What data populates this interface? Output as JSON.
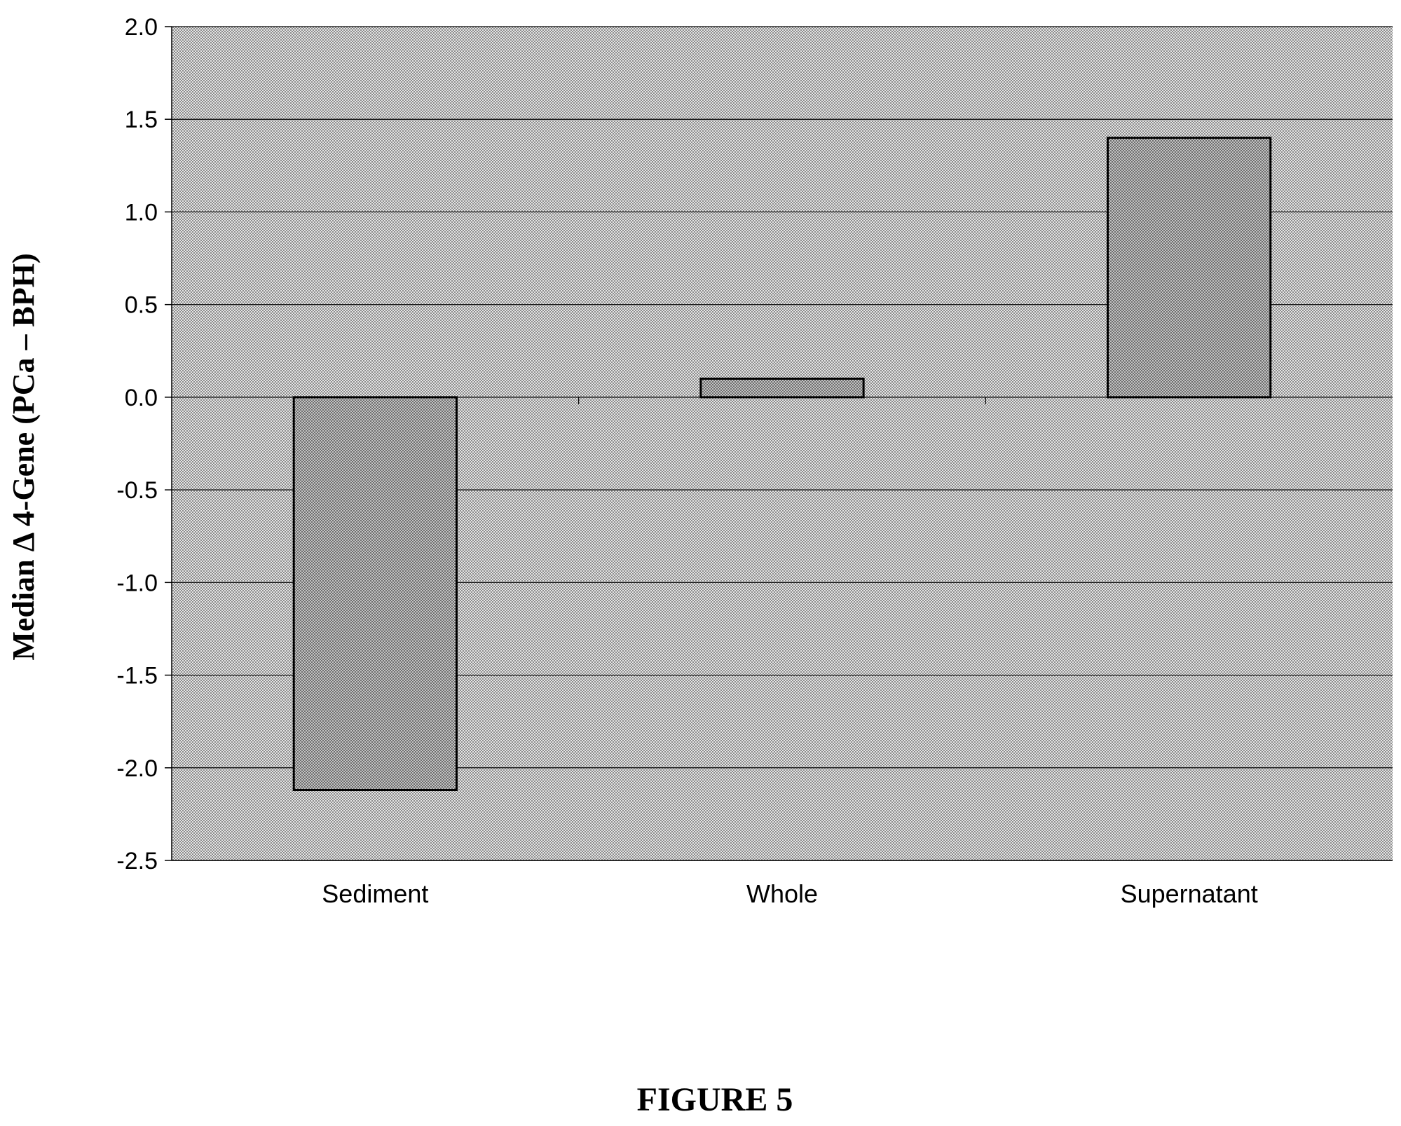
{
  "chart_data": {
    "type": "bar",
    "categories": [
      "Sediment",
      "Whole",
      "Supernatant"
    ],
    "values": [
      -2.12,
      0.1,
      1.4
    ],
    "ylabel": "Median Δ 4-Gene (PCa – BPH)",
    "xlabel": "",
    "ylim": [
      -2.5,
      2.0
    ],
    "yticks": [
      2.0,
      1.5,
      1.0,
      0.5,
      0.0,
      -0.5,
      -1.0,
      -1.5,
      -2.0,
      -2.5
    ],
    "ytick_labels": [
      "2.0",
      "1.5",
      "1.0",
      "0.5",
      "0.0",
      "-0.5",
      "-1.0",
      "-1.5",
      "-2.0",
      "-2.5"
    ],
    "grid": true,
    "legend": "none"
  },
  "figure_label": "FIGURE 5",
  "colors": {
    "plot_background": "#d9d9d9",
    "bar_fill": "#b3b3b3",
    "bar_stroke": "#000000",
    "grid": "#000000"
  }
}
